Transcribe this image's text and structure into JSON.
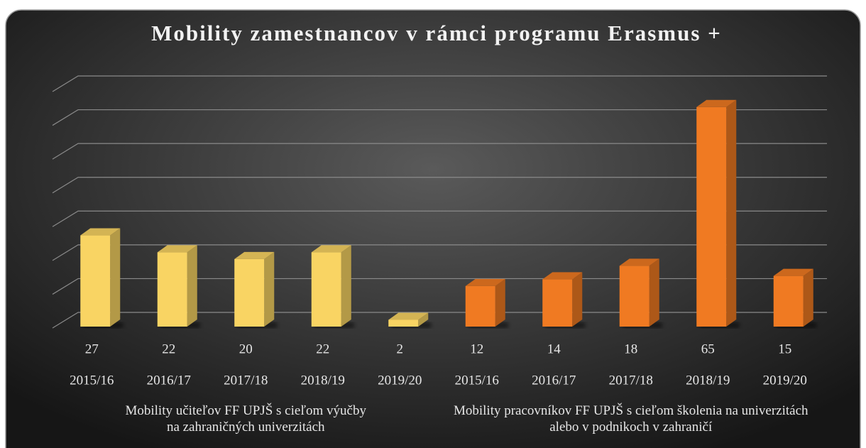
{
  "chart_data": {
    "type": "bar3d",
    "title": "Mobility zamestnancov v rámci programu Erasmus +",
    "groups": [
      {
        "name": "Mobility učiteľov FF UPJŠ s cieľom výučby na zahraničných univerzitách",
        "color": "#f9d463",
        "categories": [
          "2015/16",
          "2016/17",
          "2017/18",
          "2018/19",
          "2019/20"
        ],
        "values": [
          27,
          22,
          20,
          22,
          2
        ]
      },
      {
        "name": "Mobility pracovníkov FF UPJŠ s cieľom školenia na univerzitách alebo v podnikoch v zahraničí",
        "color": "#f07a22",
        "categories": [
          "2015/16",
          "2016/17",
          "2017/18",
          "2018/19",
          "2019/20"
        ],
        "values": [
          12,
          14,
          18,
          65,
          15
        ]
      }
    ],
    "ylim": [
      0,
      70
    ],
    "yticks": [
      0,
      10,
      20,
      30,
      40,
      50,
      60,
      70
    ],
    "grid": true
  }
}
